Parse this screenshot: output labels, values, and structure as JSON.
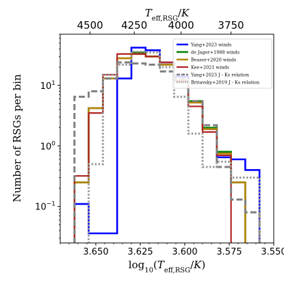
{
  "chart_data": {
    "type": "histogram-step",
    "xlabel": "log10(Teff,RSG/K)",
    "ylabel": "Number of RSGs per bin",
    "top_xlabel": "Teff,RSG/K",
    "xlim": [
      3.67,
      3.55
    ],
    "ylim": [
      0.025,
      70
    ],
    "yscale": "log",
    "x_ticks": [
      {
        "value": 3.65,
        "label": "3.650"
      },
      {
        "value": 3.625,
        "label": "3.625"
      },
      {
        "value": 3.6,
        "label": "3.600"
      },
      {
        "value": 3.575,
        "label": "3.575"
      },
      {
        "value": 3.55,
        "label": "3.550"
      }
    ],
    "top_ticks": [
      {
        "teff": 4500,
        "label": "4500"
      },
      {
        "teff": 4250,
        "label": "4250"
      },
      {
        "teff": 4000,
        "label": "4000"
      },
      {
        "teff": 3750,
        "label": "3750"
      }
    ],
    "y_ticks": [
      {
        "value": 0.1,
        "label": "10^-1"
      },
      {
        "value": 1,
        "label": "10^0"
      },
      {
        "value": 10,
        "label": "10^1"
      }
    ],
    "bin_edges": [
      3.662,
      3.654,
      3.646,
      3.638,
      3.63,
      3.622,
      3.614,
      3.606,
      3.598,
      3.59,
      3.582,
      3.574,
      3.566,
      3.558
    ],
    "series": [
      {
        "name": "Yang+2023 winds",
        "color": "#0000ff",
        "dash": "solid",
        "width": 2.6,
        "values": [
          0.11,
          0.036,
          0.036,
          13,
          42,
          38,
          24,
          14,
          5.5,
          1.9,
          0.65,
          0.6,
          0.4
        ]
      },
      {
        "name": "de Jager+1988 winds",
        "color": "#008000",
        "dash": "solid",
        "width": 2.6,
        "values": [
          0.25,
          4.2,
          13,
          28,
          35,
          30,
          22,
          12,
          5.5,
          2.0,
          0.8,
          0.25,
          0.0
        ]
      },
      {
        "name": "Beasor+2020 winds",
        "color": "#b8860b",
        "dash": "solid",
        "width": 2.6,
        "values": [
          0.25,
          4.2,
          13,
          28,
          33,
          30,
          22,
          12,
          5.2,
          1.9,
          0.75,
          0.25,
          0.0
        ]
      },
      {
        "name": "Kee+2021 winds",
        "color": "#b22222",
        "dash": "solid",
        "width": 2.2,
        "values": [
          0.32,
          3.5,
          15,
          33,
          33,
          30,
          24,
          12,
          4.5,
          1.7,
          0.7,
          0.0,
          0.0
        ]
      },
      {
        "name": "Yang+2023 J - Ks relation",
        "color": "#7f7f7f",
        "dash": "dashed",
        "width": 3,
        "values": [
          6.5,
          8.0,
          13,
          24,
          23,
          22,
          17,
          13,
          5.5,
          2.2,
          0.45,
          0.13,
          0.08
        ]
      },
      {
        "name": "Britavsky+2019 J - Ks relation",
        "color": "#999999",
        "dash": "dotted",
        "width": 3,
        "values": [
          0.0,
          0.5,
          15,
          22,
          36,
          35,
          20,
          6.5,
          1.6,
          0.45,
          0.55,
          0.3,
          0.3
        ]
      }
    ],
    "legend_position": "upper-right"
  }
}
